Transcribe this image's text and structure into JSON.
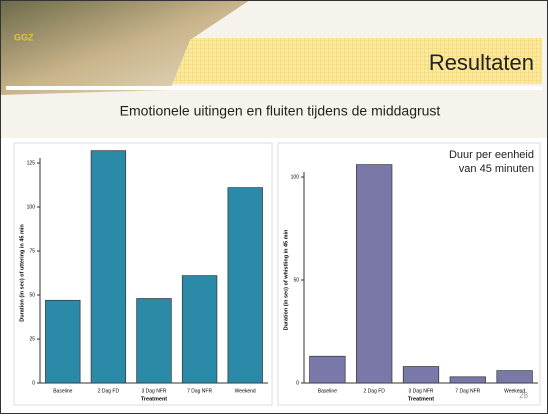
{
  "slide": {
    "logo": "GGZ",
    "title": "Resultaten",
    "subtitle": "Emotionele uitingen en fluiten tijdens de middagrust",
    "page_number": "28"
  },
  "chart_data": [
    {
      "type": "bar",
      "xlabel": "Treatment",
      "ylabel": "Duration (in sec) of uttering in 45 min",
      "categories": [
        "Baseline",
        "2 Dag FD",
        "3 Dag NFR",
        "7 Dag NFR",
        "Weekend"
      ],
      "values": [
        47,
        132,
        48,
        61,
        111
      ],
      "color": "#2a8aa8",
      "ylim": [
        0,
        125
      ],
      "yticks": [
        0,
        25,
        50,
        75,
        100,
        125
      ]
    },
    {
      "type": "bar",
      "xlabel": "Treatment",
      "ylabel": "Duration (in sec) of whistling in 45 min",
      "annotation": [
        "Duur per eenheid",
        "van 45 minuten"
      ],
      "categories": [
        "Baseline",
        "2 Dag FD",
        "3 Dag NFR",
        "7 Dag NFR",
        "Weekend"
      ],
      "values": [
        13,
        106,
        8,
        3,
        6
      ],
      "color": "#7a78a8",
      "ylim": [
        0,
        100
      ],
      "yticks": [
        0,
        50,
        100
      ]
    }
  ]
}
